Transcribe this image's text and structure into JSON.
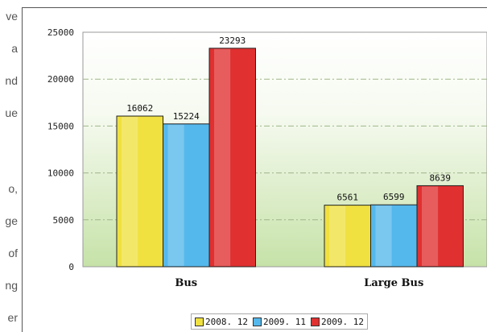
{
  "side_text": [
    "ve",
    "a",
    "nd",
    "ue",
    "o,",
    "ge",
    "of",
    "ng",
    "er"
  ],
  "chart_data": {
    "type": "bar",
    "categories": [
      "Bus",
      "Large Bus"
    ],
    "series": [
      {
        "name": "2008. 12",
        "values": [
          16062,
          6561
        ],
        "color": "#f0e040"
      },
      {
        "name": "2009. 11",
        "values": [
          15224,
          6599
        ],
        "color": "#55b8ec"
      },
      {
        "name": "2009. 12",
        "values": [
          23293,
          8639
        ],
        "color": "#e03030"
      }
    ],
    "yticks": [
      "0",
      "5000",
      "10000",
      "15000",
      "20000",
      "25000"
    ],
    "ylim": [
      0,
      25000
    ],
    "grid": true,
    "legend_position": "bottom-center"
  }
}
